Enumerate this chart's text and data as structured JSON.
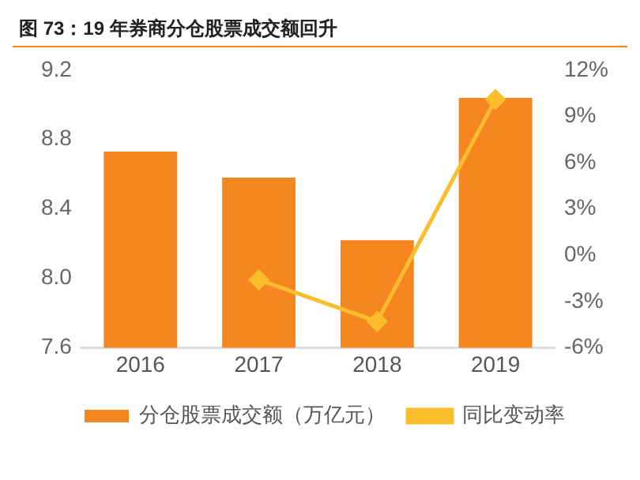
{
  "chart_data": {
    "type": "bar",
    "title": "图 73：19 年券商分仓股票成交额回升",
    "categories": [
      "2016",
      "2017",
      "2018",
      "2019"
    ],
    "series": [
      {
        "name": "分仓股票成交额（万亿元）",
        "color": "#f58620",
        "values": [
          8.73,
          8.58,
          8.22,
          9.04
        ]
      },
      {
        "name": "同比变动率",
        "type": "line",
        "axis": "y2",
        "color": "#fbbd2c",
        "marker": "diamond",
        "values": [
          null,
          -1.6,
          -4.3,
          10.1
        ]
      }
    ],
    "ylim": [
      7.6,
      9.2
    ],
    "yticks": [
      {
        "value": 7.6,
        "label": "7.6"
      },
      {
        "value": 8.0,
        "label": "8.0"
      },
      {
        "value": 8.4,
        "label": "8.4"
      },
      {
        "value": 8.8,
        "label": "8.8"
      },
      {
        "value": 9.2,
        "label": "9.2"
      }
    ],
    "y2lim": [
      -6,
      12
    ],
    "y2ticks": [
      {
        "value": -6,
        "label": "-6%"
      },
      {
        "value": -3,
        "label": "-3%"
      },
      {
        "value": 0,
        "label": "0%"
      },
      {
        "value": 3,
        "label": "3%"
      },
      {
        "value": 6,
        "label": "6%"
      },
      {
        "value": 9,
        "label": "9%"
      },
      {
        "value": 12,
        "label": "12%"
      }
    ],
    "grid": false,
    "legend": "bottom"
  }
}
